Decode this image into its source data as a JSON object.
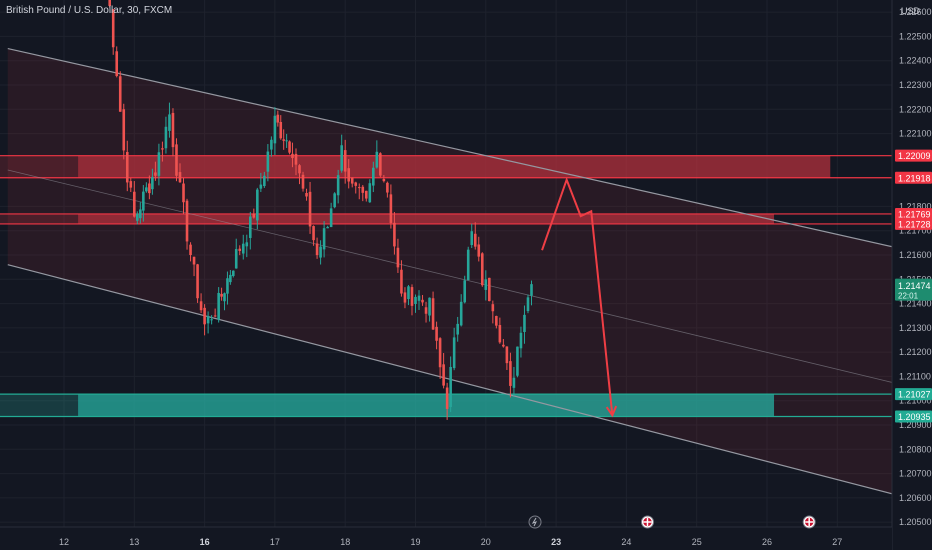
{
  "header": {
    "symbol_title": "British Pound / U.S. Dollar, 30, FXCM"
  },
  "colors": {
    "background": "#131722",
    "up": "#26a69a",
    "down": "#ef5350",
    "resistance_zone": "#b2303c",
    "support_zone": "#26a69a",
    "channel": "#9598a1",
    "projection": "#ef3e45",
    "price_tag": "#1e8c6f"
  },
  "chart_data": {
    "type": "candlestick",
    "currency_label": "USD",
    "y_ticks": [
      "1.22600",
      "1.22500",
      "1.22400",
      "1.22300",
      "1.22200",
      "1.22100",
      "1.21800",
      "1.21700",
      "1.21600",
      "1.21500",
      "1.21400",
      "1.21300",
      "1.21200",
      "1.21100",
      "1.21000",
      "1.20900",
      "1.20800",
      "1.20700",
      "1.20600",
      "1.20500"
    ],
    "ylim": [
      1.2048,
      1.2265
    ],
    "x_ticks": [
      {
        "label": "12",
        "day": 12,
        "bold": false
      },
      {
        "label": "13",
        "day": 13,
        "bold": false
      },
      {
        "label": "16",
        "day": 14,
        "bold": true
      },
      {
        "label": "17",
        "day": 15,
        "bold": false
      },
      {
        "label": "18",
        "day": 16,
        "bold": false
      },
      {
        "label": "19",
        "day": 17,
        "bold": false
      },
      {
        "label": "20",
        "day": 18,
        "bold": false
      },
      {
        "label": "23",
        "day": 19,
        "bold": true
      },
      {
        "label": "24",
        "day": 20,
        "bold": false
      },
      {
        "label": "25",
        "day": 21,
        "bold": false
      },
      {
        "label": "26",
        "day": 22,
        "bold": false
      },
      {
        "label": "27",
        "day": 23,
        "bold": false
      }
    ],
    "price_levels": [
      {
        "label": "1.22009",
        "value": 1.22009,
        "kind": "resistance"
      },
      {
        "label": "1.21918",
        "value": 1.21918,
        "kind": "resistance"
      },
      {
        "label": "1.21769",
        "value": 1.21769,
        "kind": "resistance"
      },
      {
        "label": "1.21728",
        "value": 1.21728,
        "kind": "resistance"
      },
      {
        "label": "1.21027",
        "value": 1.21027,
        "kind": "support"
      },
      {
        "label": "1.20935",
        "value": 1.20935,
        "kind": "support"
      }
    ],
    "current_price": {
      "label": "1.21474",
      "sub": "22:01",
      "value": 1.21474
    },
    "zones": [
      {
        "kind": "resistance",
        "from_day": 12.2,
        "to_day": 22.9,
        "low": 1.21918,
        "high": 1.22009
      },
      {
        "kind": "resistance",
        "from_day": 12.2,
        "to_day": 22.1,
        "low": 1.21728,
        "high": 1.21769
      },
      {
        "kind": "support",
        "from_day": 12.2,
        "to_day": 22.1,
        "low": 1.20935,
        "high": 1.21027
      }
    ],
    "channel_lines": [
      {
        "role": "upper",
        "from": [
          11.2,
          1.2245
        ],
        "to": [
          24.0,
          1.2162
        ]
      },
      {
        "role": "middle",
        "from": [
          11.2,
          1.2195
        ],
        "to": [
          24.0,
          1.2106
        ]
      },
      {
        "role": "lower",
        "from": [
          11.2,
          1.2156
        ],
        "to": [
          24.0,
          1.206
        ]
      }
    ],
    "projection_path": [
      [
        18.8,
        1.2162
      ],
      [
        19.15,
        1.2191
      ],
      [
        19.35,
        1.2176
      ],
      [
        19.5,
        1.2178
      ],
      [
        19.8,
        1.2094
      ]
    ],
    "ohlc_anchors": [
      [
        12.6,
        1.2275
      ],
      [
        12.75,
        1.2236
      ],
      [
        12.85,
        1.2203
      ],
      [
        13.0,
        1.2175
      ],
      [
        13.3,
        1.2195
      ],
      [
        13.5,
        1.2218
      ],
      [
        13.65,
        1.2186
      ],
      [
        13.85,
        1.2152
      ],
      [
        14.0,
        1.2131
      ],
      [
        14.2,
        1.214
      ],
      [
        14.45,
        1.216
      ],
      [
        14.65,
        1.2172
      ],
      [
        14.85,
        1.2195
      ],
      [
        15.0,
        1.2215
      ],
      [
        15.25,
        1.2204
      ],
      [
        15.45,
        1.218
      ],
      [
        15.6,
        1.216
      ],
      [
        15.75,
        1.2172
      ],
      [
        15.95,
        1.2203
      ],
      [
        16.1,
        1.2187
      ],
      [
        16.3,
        1.218
      ],
      [
        16.45,
        1.2202
      ],
      [
        16.6,
        1.2187
      ],
      [
        16.8,
        1.2142
      ],
      [
        17.0,
        1.2144
      ],
      [
        17.2,
        1.2138
      ],
      [
        17.35,
        1.2113
      ],
      [
        17.45,
        1.21
      ],
      [
        17.65,
        1.2145
      ],
      [
        17.8,
        1.2168
      ],
      [
        17.95,
        1.215
      ],
      [
        18.1,
        1.2141
      ],
      [
        18.25,
        1.2122
      ],
      [
        18.35,
        1.2103
      ],
      [
        18.5,
        1.2132
      ],
      [
        18.65,
        1.2148
      ]
    ],
    "event_markers": [
      {
        "day": 18.7,
        "icon": "lightning-icon"
      },
      {
        "day": 20.3,
        "icon": "flag-gb-icon"
      },
      {
        "day": 22.6,
        "icon": "flag-us-icon"
      }
    ]
  }
}
